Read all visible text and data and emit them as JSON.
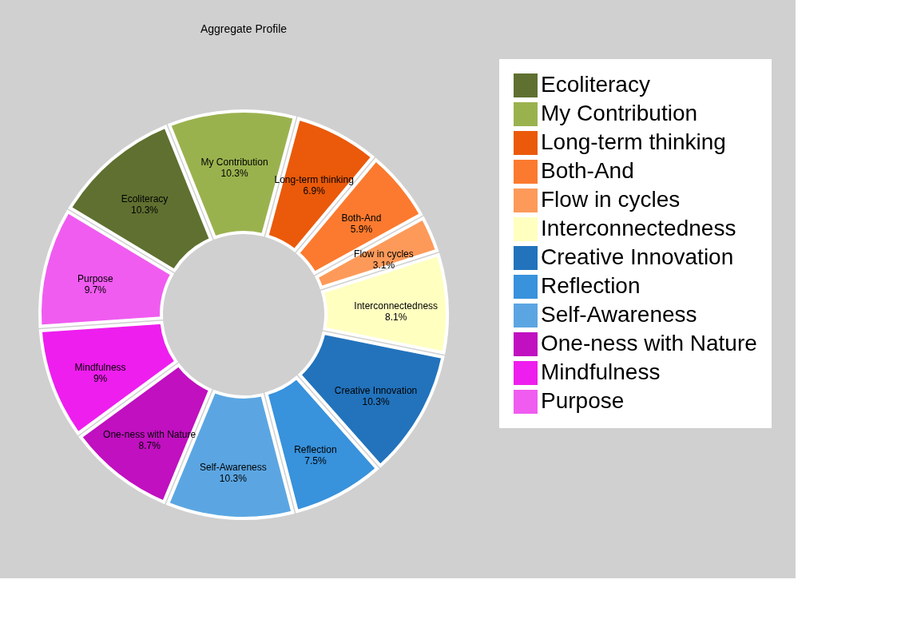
{
  "chart_data": {
    "type": "donut",
    "title": "Aggregate Profile",
    "categories": [
      "Ecoliteracy",
      "My Contribution",
      "Long-term thinking",
      "Both-And",
      "Flow in cycles",
      "Interconnectedness",
      "Creative Innovation",
      "Reflection",
      "Self-Awareness",
      "One-ness with Nature",
      "Mindfulness",
      "Purpose"
    ],
    "values": [
      10.3,
      10.3,
      6.9,
      5.9,
      3.1,
      8.1,
      10.3,
      7.5,
      10.3,
      8.7,
      9,
      9.7
    ],
    "colors": [
      "#5f7030",
      "#9ab24e",
      "#ea5a0a",
      "#fb7a2f",
      "#fd9a5a",
      "#ffffc0",
      "#2273bc",
      "#3892dc",
      "#5ba6e2",
      "#c010c0",
      "#ee1eee",
      "#f05cf0"
    ],
    "value_labels": [
      "10.3%",
      "10.3%",
      "6.9%",
      "5.9%",
      "3.1%",
      "8.1%",
      "10.3%",
      "7.5%",
      "10.3%",
      "8.7%",
      "9%",
      "9.7%"
    ],
    "legend": "right"
  }
}
